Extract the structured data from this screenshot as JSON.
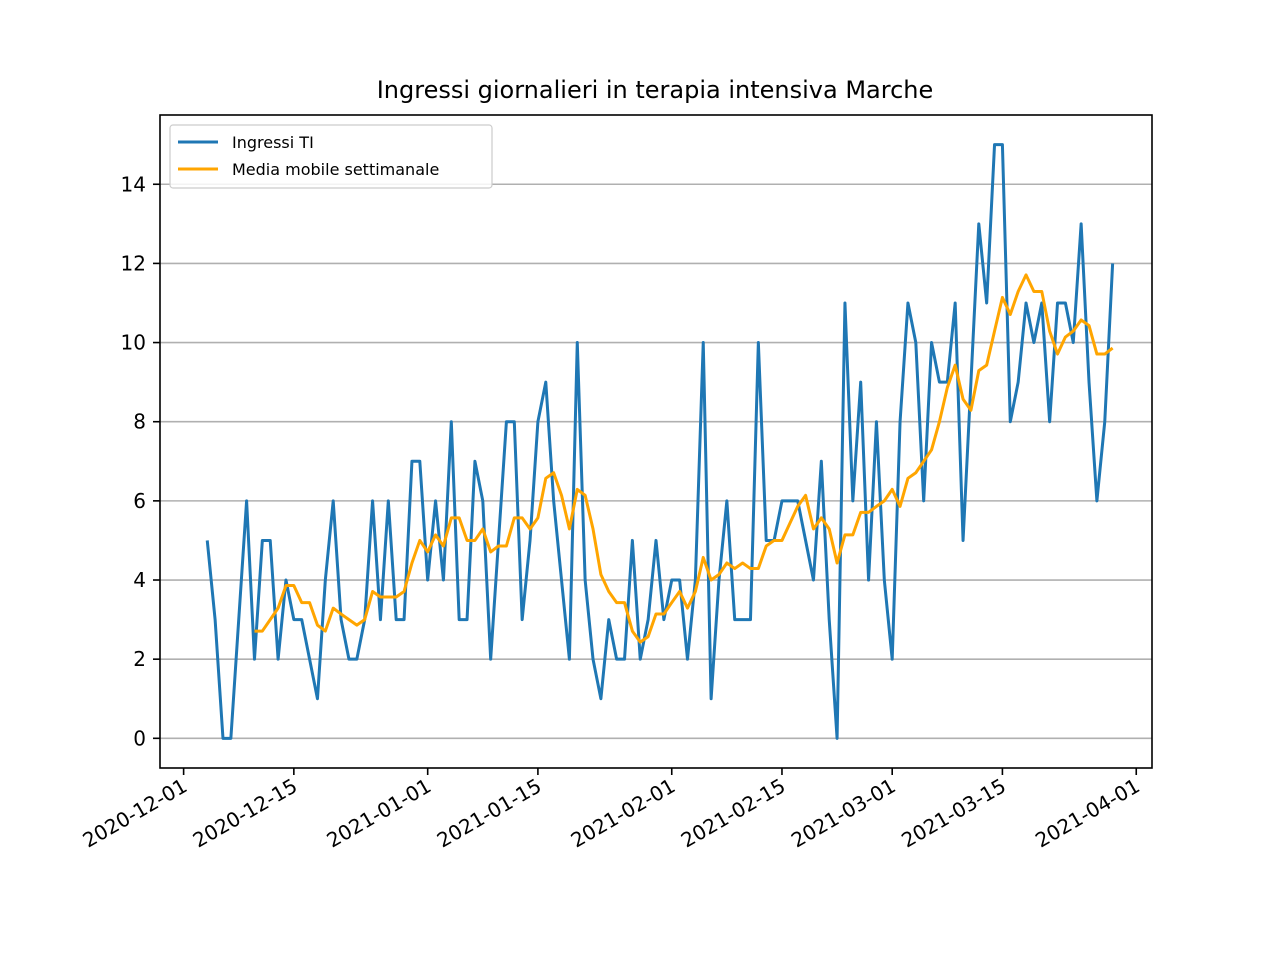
{
  "chart_data": {
    "type": "line",
    "title": "Ingressi giornalieri in terapia intensiva Marche",
    "xlabel": "",
    "ylabel": "",
    "x_start": "2020-12-04",
    "x_ticks": [
      "2020-12-01",
      "2020-12-15",
      "2021-01-01",
      "2021-01-15",
      "2021-02-01",
      "2021-02-15",
      "2021-03-01",
      "2021-03-15",
      "2021-04-01"
    ],
    "y_ticks": [
      0,
      2,
      4,
      6,
      8,
      10,
      12,
      14
    ],
    "xlim": [
      "2020-11-28",
      "2021-04-03"
    ],
    "ylim": [
      -0.75,
      15.75
    ],
    "grid": "horizontal",
    "legend_position": "top-left",
    "series": [
      {
        "name": "Ingressi TI",
        "color": "#1f77b4",
        "values": [
          5,
          3,
          0,
          0,
          3,
          6,
          2,
          5,
          5,
          2,
          4,
          3,
          3,
          2,
          1,
          4,
          6,
          3,
          2,
          2,
          3,
          6,
          3,
          6,
          3,
          3,
          7,
          7,
          4,
          6,
          4,
          8,
          3,
          3,
          7,
          6,
          2,
          5,
          8,
          8,
          3,
          5,
          8,
          9,
          6,
          4,
          2,
          10,
          4,
          2,
          1,
          3,
          2,
          2,
          5,
          2,
          3,
          5,
          3,
          4,
          4,
          2,
          4,
          10,
          1,
          4,
          6,
          3,
          3,
          3,
          10,
          5,
          5,
          6,
          6,
          6,
          5,
          4,
          7,
          3,
          0,
          11,
          6,
          9,
          4,
          8,
          4,
          2,
          8,
          11,
          10,
          6,
          10,
          9,
          9,
          11,
          5,
          9,
          13,
          11,
          15,
          15,
          8,
          9,
          11,
          10,
          11,
          8,
          11,
          11,
          10,
          13,
          9,
          6,
          8,
          12
        ]
      },
      {
        "name": "Media mobile settimanale",
        "color": "#ffa500",
        "start_offset": 6,
        "values": [
          2.71,
          2.71,
          3.0,
          3.29,
          3.86,
          3.86,
          3.43,
          3.43,
          2.86,
          2.71,
          3.29,
          3.14,
          3.0,
          2.86,
          3.0,
          3.71,
          3.57,
          3.57,
          3.57,
          3.71,
          4.43,
          5.0,
          4.71,
          5.14,
          4.86,
          5.57,
          5.57,
          5.0,
          5.0,
          5.29,
          4.71,
          4.86,
          4.86,
          5.57,
          5.57,
          5.29,
          5.57,
          6.57,
          6.71,
          6.14,
          5.29,
          6.29,
          6.14,
          5.29,
          4.14,
          3.71,
          3.43,
          3.43,
          2.71,
          2.43,
          2.57,
          3.14,
          3.14,
          3.43,
          3.71,
          3.29,
          3.71,
          4.57,
          4.0,
          4.14,
          4.43,
          4.29,
          4.43,
          4.29,
          4.29,
          4.86,
          5.0,
          5.0,
          5.43,
          5.86,
          6.14,
          5.29,
          5.57,
          5.29,
          4.43,
          5.14,
          5.14,
          5.71,
          5.71,
          5.86,
          6.0,
          6.29,
          5.86,
          6.57,
          6.71,
          7.0,
          7.29,
          8.0,
          8.86,
          9.43,
          8.57,
          8.29,
          9.29,
          9.43,
          10.29,
          11.14,
          10.71,
          11.29,
          11.71,
          11.29,
          11.29,
          10.29,
          9.71,
          10.14,
          10.29,
          10.57,
          10.43,
          9.71,
          9.71,
          9.86
        ]
      }
    ]
  }
}
